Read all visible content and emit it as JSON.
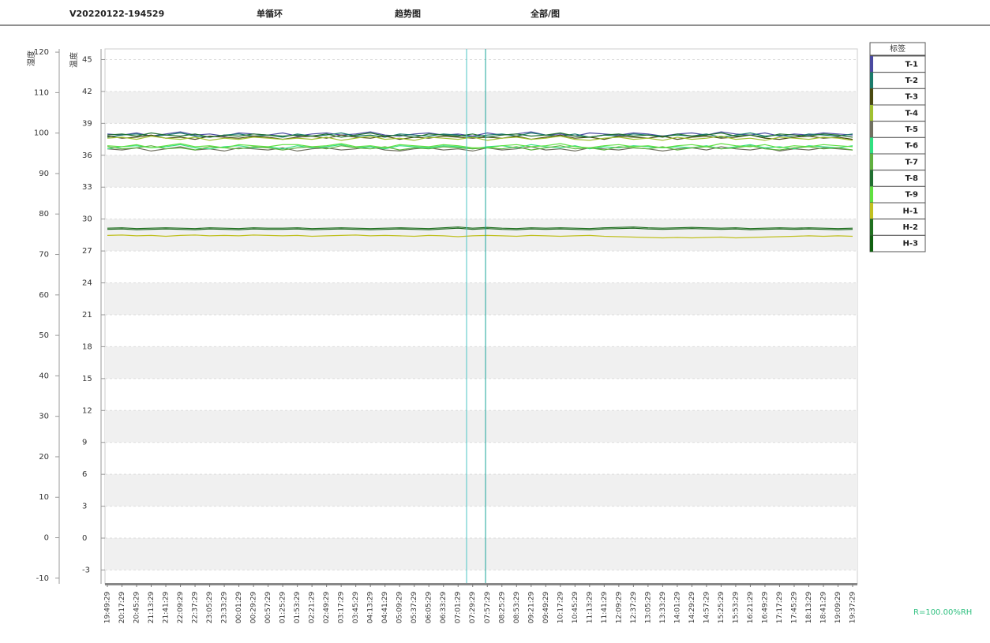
{
  "header": {
    "version": "V20220122-194529",
    "mode": "单循环",
    "view": "趋势图",
    "scope": "全部/图"
  },
  "chart_data": {
    "type": "line",
    "ylabel": "湿度",
    "y2label": "温度",
    "ylim": [
      -11.4,
      120.8
    ],
    "yticks": [
      -10,
      0,
      10,
      20,
      30,
      40,
      50,
      60,
      70,
      80,
      90,
      100,
      110,
      120
    ],
    "y2lim": [
      -4.3,
      46
    ],
    "y2ticks": [
      -3,
      0,
      3,
      6,
      9,
      12,
      15,
      18,
      21,
      24,
      27,
      30,
      33,
      36,
      39,
      42,
      45
    ],
    "grid": true,
    "legend_title": "标签",
    "categories": [
      "19:49:29",
      "20:17:29",
      "20:45:29",
      "21:13:29",
      "21:41:29",
      "22:09:29",
      "22:37:29",
      "23:05:29",
      "23:33:29",
      "00:01:29",
      "00:29:29",
      "00:57:29",
      "01:25:29",
      "01:53:29",
      "02:21:29",
      "02:49:29",
      "03:17:29",
      "03:45:29",
      "04:13:29",
      "04:41:29",
      "05:09:29",
      "05:37:29",
      "06:05:29",
      "06:33:29",
      "07:01:29",
      "07:29:29",
      "07:57:29",
      "08:25:29",
      "08:53:29",
      "09:21:29",
      "09:49:29",
      "10:17:29",
      "10:45:29",
      "11:13:29",
      "11:41:29",
      "12:09:29",
      "12:37:29",
      "13:05:29",
      "13:33:29",
      "14:01:29",
      "14:29:29",
      "14:57:29",
      "15:25:29",
      "15:53:29",
      "16:21:29",
      "16:49:29",
      "17:17:29",
      "17:45:29",
      "18:13:29",
      "18:41:29",
      "19:09:29",
      "19:37:29"
    ],
    "series": [
      {
        "name": "T-1",
        "color": "#4a4aa0",
        "axis": "y2",
        "values": [
          38.0,
          37.9,
          38.1,
          37.8,
          38.0,
          38.2,
          37.9,
          38.0,
          37.8,
          38.1,
          38.0,
          37.9,
          38.1,
          37.8,
          38.0,
          38.1,
          37.9,
          38.0,
          38.2,
          37.9,
          37.8,
          38.0,
          38.1,
          37.9,
          38.0,
          37.8,
          38.1,
          37.9,
          38.0,
          38.2,
          37.9,
          38.0,
          37.8,
          38.1,
          38.0,
          37.9,
          38.1,
          38.0,
          37.8,
          38.0,
          38.1,
          37.9,
          38.2,
          38.0,
          37.9,
          38.1,
          37.8,
          38.0,
          37.9,
          38.1,
          38.0,
          37.9
        ]
      },
      {
        "name": "T-2",
        "color": "#1a7a6a",
        "axis": "y2",
        "values": [
          37.7,
          37.9,
          38.0,
          37.8,
          37.9,
          38.1,
          37.8,
          37.7,
          37.9,
          38.0,
          37.8,
          37.9,
          37.7,
          38.0,
          37.8,
          37.9,
          38.1,
          37.8,
          37.9,
          37.7,
          38.0,
          37.9,
          37.8,
          38.0,
          37.9,
          37.7,
          37.9,
          38.0,
          37.8,
          38.1,
          37.9,
          37.8,
          38.0,
          37.7,
          37.9,
          37.8,
          38.0,
          37.9,
          37.8,
          37.9,
          37.8,
          38.0,
          37.7,
          37.9,
          38.1,
          37.8,
          37.9,
          37.7,
          38.0,
          37.9,
          37.8,
          38.0
        ]
      },
      {
        "name": "T-3",
        "color": "#4a4a10",
        "axis": "y2",
        "values": [
          37.8,
          37.6,
          37.7,
          37.9,
          37.6,
          37.7,
          37.5,
          37.8,
          37.7,
          37.6,
          37.8,
          37.7,
          37.5,
          37.7,
          37.8,
          37.6,
          37.9,
          37.7,
          37.6,
          37.8,
          37.5,
          37.7,
          37.6,
          37.8,
          37.7,
          37.6,
          37.7,
          37.6,
          37.8,
          37.5,
          37.7,
          37.9,
          37.6,
          37.7,
          37.5,
          37.8,
          37.7,
          37.6,
          37.8,
          37.5,
          37.7,
          37.8,
          37.6,
          37.7,
          37.9,
          37.6,
          37.5,
          37.7,
          37.8,
          37.6,
          37.7,
          37.5
        ]
      },
      {
        "name": "T-4",
        "color": "#a0c030",
        "axis": "y2",
        "values": [
          37.6,
          37.7,
          37.5,
          37.8,
          37.6,
          37.5,
          37.7,
          37.4,
          37.6,
          37.5,
          37.7,
          37.6,
          37.5,
          37.6,
          37.5,
          37.7,
          37.4,
          37.6,
          37.8,
          37.5,
          37.6,
          37.4,
          37.7,
          37.6,
          37.5,
          37.7,
          37.4,
          37.6,
          37.7,
          37.5,
          37.6,
          37.8,
          37.5,
          37.4,
          37.6,
          37.7,
          37.5,
          37.6,
          37.4,
          37.7,
          37.5,
          37.6,
          37.8,
          37.5,
          37.6,
          37.4,
          37.7,
          37.6,
          37.5,
          37.7,
          37.6,
          37.4
        ]
      },
      {
        "name": "T-5",
        "color": "#707060",
        "axis": "y2",
        "values": [
          36.6,
          36.5,
          36.7,
          36.4,
          36.6,
          36.8,
          36.5,
          36.6,
          36.4,
          36.7,
          36.6,
          36.5,
          36.7,
          36.4,
          36.6,
          36.7,
          36.5,
          36.6,
          36.8,
          36.5,
          36.4,
          36.6,
          36.7,
          36.5,
          36.6,
          36.4,
          36.7,
          36.5,
          36.6,
          36.8,
          36.5,
          36.6,
          36.4,
          36.7,
          36.6,
          36.5,
          36.7,
          36.6,
          36.4,
          36.6,
          36.7,
          36.5,
          36.8,
          36.6,
          36.5,
          36.7,
          36.4,
          36.6,
          36.5,
          36.7,
          36.6,
          36.5
        ]
      },
      {
        "name": "T-6",
        "color": "#30e080",
        "axis": "y2",
        "values": [
          36.6,
          36.8,
          36.9,
          36.7,
          36.8,
          37.0,
          36.7,
          36.6,
          36.8,
          36.9,
          36.7,
          36.8,
          36.6,
          36.9,
          36.7,
          36.8,
          37.0,
          36.7,
          36.8,
          36.6,
          36.9,
          36.8,
          36.7,
          36.9,
          36.8,
          36.6,
          36.8,
          36.9,
          36.7,
          37.0,
          36.8,
          36.7,
          36.9,
          36.6,
          36.8,
          36.7,
          36.9,
          36.8,
          36.7,
          36.8,
          36.7,
          36.9,
          36.6,
          36.8,
          37.0,
          36.7,
          36.8,
          36.6,
          36.9,
          36.8,
          36.7,
          36.9
        ]
      },
      {
        "name": "T-7",
        "color": "#60b040",
        "axis": "y2",
        "values": [
          36.8,
          36.6,
          36.7,
          36.9,
          36.6,
          36.7,
          36.5,
          36.8,
          36.7,
          36.6,
          36.8,
          36.7,
          36.5,
          36.7,
          36.8,
          36.6,
          36.9,
          36.7,
          36.6,
          36.8,
          36.5,
          36.7,
          36.6,
          36.8,
          36.7,
          36.6,
          36.7,
          36.6,
          36.8,
          36.5,
          36.7,
          36.9,
          36.6,
          36.7,
          36.5,
          36.8,
          36.7,
          36.6,
          36.8,
          36.5,
          36.7,
          36.8,
          36.6,
          36.7,
          36.9,
          36.6,
          36.5,
          36.7,
          36.8,
          36.6,
          36.7,
          36.5
        ]
      },
      {
        "name": "T-8",
        "color": "#207030",
        "axis": "y2",
        "values": [
          37.9,
          38.0,
          37.8,
          38.1,
          37.9,
          37.8,
          38.0,
          37.7,
          37.9,
          37.8,
          38.0,
          37.9,
          37.8,
          37.9,
          37.8,
          38.0,
          37.7,
          37.9,
          38.1,
          37.8,
          37.9,
          37.7,
          38.0,
          37.9,
          37.8,
          38.0,
          37.7,
          37.9,
          38.0,
          37.8,
          37.9,
          38.1,
          37.8,
          37.7,
          37.9,
          38.0,
          37.8,
          37.9,
          37.7,
          38.0,
          37.8,
          37.9,
          38.1,
          37.8,
          37.9,
          37.7,
          38.0,
          37.9,
          37.8,
          38.0,
          37.9,
          37.7
        ]
      },
      {
        "name": "T-9",
        "color": "#60e040",
        "axis": "y2",
        "values": [
          36.9,
          36.8,
          37.0,
          36.7,
          36.9,
          37.1,
          36.8,
          36.9,
          36.7,
          37.0,
          36.9,
          36.8,
          37.0,
          37.0,
          36.8,
          36.9,
          37.1,
          36.8,
          36.9,
          36.7,
          37.0,
          36.9,
          36.8,
          37.0,
          36.9,
          36.7,
          36.7,
          36.9,
          37.0,
          36.8,
          36.9,
          37.1,
          36.8,
          36.7,
          36.9,
          37.0,
          36.8,
          36.9,
          36.7,
          36.9,
          37.0,
          36.8,
          37.1,
          36.9,
          36.8,
          37.0,
          36.7,
          36.9,
          36.8,
          37.0,
          36.9,
          36.8
        ]
      },
      {
        "name": "H-1",
        "color": "#c0c020",
        "values": [
          74.7,
          74.8,
          74.6,
          74.7,
          74.5,
          74.7,
          74.8,
          74.6,
          74.7,
          74.6,
          74.8,
          74.7,
          74.6,
          74.7,
          74.5,
          74.6,
          74.7,
          74.8,
          74.6,
          74.7,
          74.6,
          74.5,
          74.7,
          74.6,
          74.4,
          74.6,
          74.7,
          74.6,
          74.5,
          74.7,
          74.6,
          74.5,
          74.6,
          74.7,
          74.5,
          74.4,
          74.3,
          74.2,
          74.1,
          74.2,
          74.1,
          74.2,
          74.3,
          74.1,
          74.2,
          74.3,
          74.4,
          74.5,
          74.6,
          74.5,
          74.6,
          74.5
        ]
      },
      {
        "name": "H-2",
        "color": "#207020",
        "values": [
          76.5,
          76.6,
          76.4,
          76.5,
          76.6,
          76.5,
          76.4,
          76.6,
          76.5,
          76.4,
          76.6,
          76.5,
          76.5,
          76.6,
          76.4,
          76.5,
          76.6,
          76.5,
          76.4,
          76.5,
          76.6,
          76.5,
          76.4,
          76.6,
          76.8,
          76.5,
          76.7,
          76.5,
          76.4,
          76.6,
          76.5,
          76.6,
          76.5,
          76.4,
          76.6,
          76.7,
          76.8,
          76.6,
          76.5,
          76.6,
          76.7,
          76.6,
          76.5,
          76.6,
          76.4,
          76.5,
          76.6,
          76.5,
          76.6,
          76.5,
          76.4,
          76.5
        ]
      },
      {
        "name": "H-3",
        "color": "#106010",
        "values": [
          76.2,
          76.3,
          76.1,
          76.2,
          76.3,
          76.2,
          76.1,
          76.3,
          76.2,
          76.1,
          76.3,
          76.2,
          76.2,
          76.3,
          76.1,
          76.2,
          76.3,
          76.2,
          76.1,
          76.2,
          76.3,
          76.2,
          76.1,
          76.3,
          76.5,
          76.2,
          76.4,
          76.2,
          76.1,
          76.3,
          76.2,
          76.3,
          76.2,
          76.1,
          76.3,
          76.4,
          76.5,
          76.3,
          76.2,
          76.3,
          76.4,
          76.3,
          76.2,
          76.3,
          76.1,
          76.2,
          76.3,
          76.2,
          76.3,
          76.2,
          76.1,
          76.2
        ]
      }
    ]
  },
  "footer": {
    "ratio": "R=100.00%RH"
  }
}
